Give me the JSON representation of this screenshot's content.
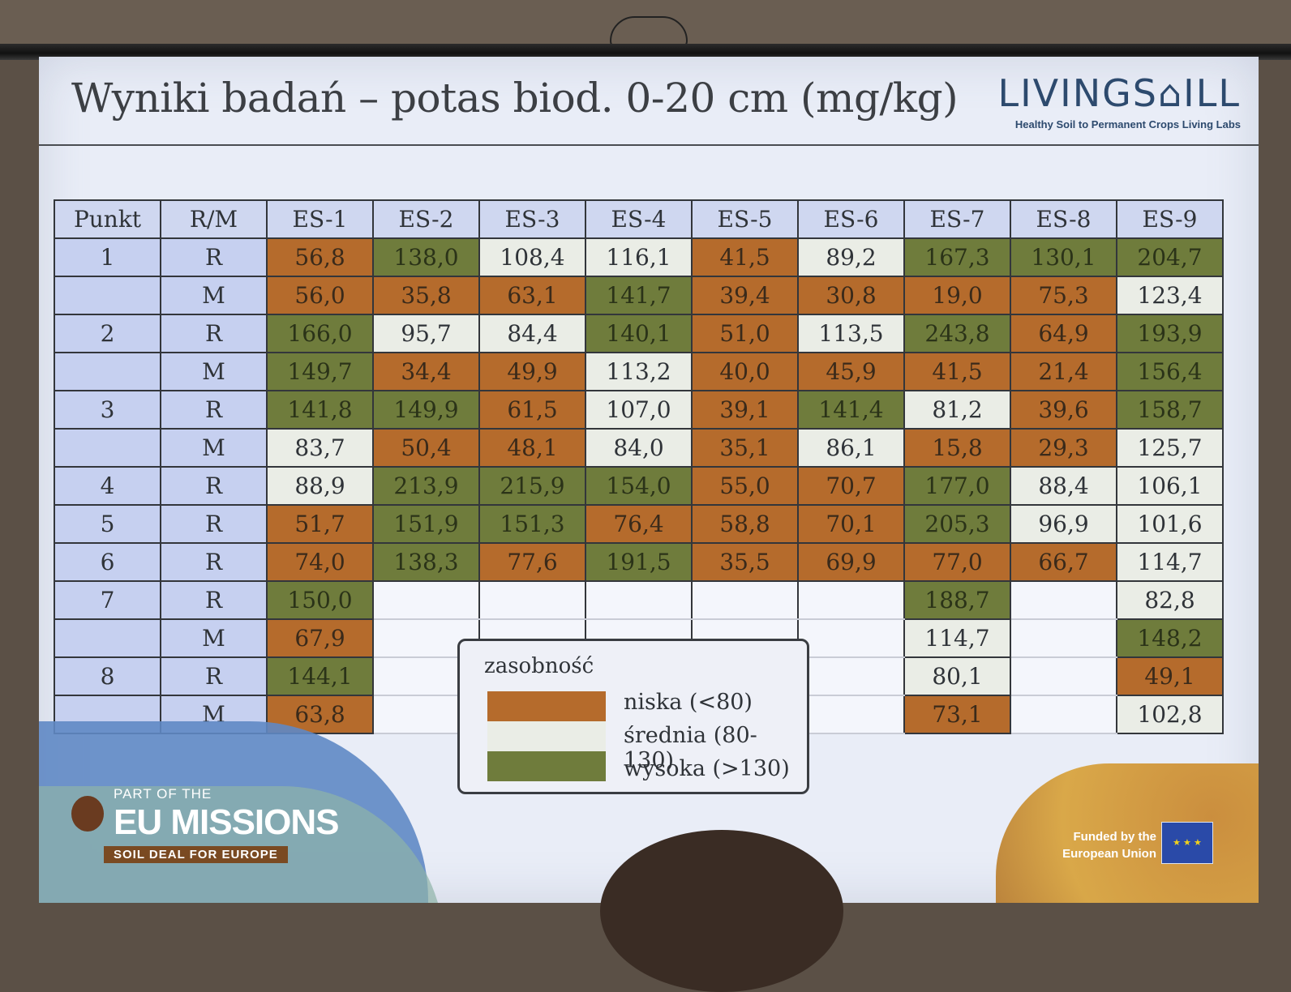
{
  "slide": {
    "title": "Wyniki badań – potas biod. 0-20 cm (mg/kg)",
    "logo_word": "LIVINGS⌂ILL",
    "logo_sub": "Healthy Soil to Permanent Crops Living Labs"
  },
  "table": {
    "headers": [
      "Punkt",
      "R/M",
      "ES-1",
      "ES-2",
      "ES-3",
      "ES-4",
      "ES-5",
      "ES-6",
      "ES-7",
      "ES-8",
      "ES-9"
    ],
    "rows": [
      {
        "punkt": "1",
        "rm": "R",
        "cells": [
          "56,8",
          "138,0",
          "108,4",
          "116,1",
          "41,5",
          "89,2",
          "167,3",
          "130,1",
          "204,7"
        ],
        "levels": [
          "low",
          "high",
          "mid",
          "mid",
          "low",
          "mid",
          "high",
          "high",
          "high"
        ]
      },
      {
        "punkt": "",
        "rm": "M",
        "cells": [
          "56,0",
          "35,8",
          "63,1",
          "141,7",
          "39,4",
          "30,8",
          "19,0",
          "75,3",
          "123,4"
        ],
        "levels": [
          "low",
          "low",
          "low",
          "high",
          "low",
          "low",
          "low",
          "low",
          "mid"
        ]
      },
      {
        "punkt": "2",
        "rm": "R",
        "cells": [
          "166,0",
          "95,7",
          "84,4",
          "140,1",
          "51,0",
          "113,5",
          "243,8",
          "64,9",
          "193,9"
        ],
        "levels": [
          "high",
          "mid",
          "mid",
          "high",
          "low",
          "mid",
          "high",
          "low",
          "high"
        ]
      },
      {
        "punkt": "",
        "rm": "M",
        "cells": [
          "149,7",
          "34,4",
          "49,9",
          "113,2",
          "40,0",
          "45,9",
          "41,5",
          "21,4",
          "156,4"
        ],
        "levels": [
          "high",
          "low",
          "low",
          "mid",
          "low",
          "low",
          "low",
          "low",
          "high"
        ]
      },
      {
        "punkt": "3",
        "rm": "R",
        "cells": [
          "141,8",
          "149,9",
          "61,5",
          "107,0",
          "39,1",
          "141,4",
          "81,2",
          "39,6",
          "158,7"
        ],
        "levels": [
          "high",
          "high",
          "low",
          "mid",
          "low",
          "high",
          "mid",
          "low",
          "high"
        ]
      },
      {
        "punkt": "",
        "rm": "M",
        "cells": [
          "83,7",
          "50,4",
          "48,1",
          "84,0",
          "35,1",
          "86,1",
          "15,8",
          "29,3",
          "125,7"
        ],
        "levels": [
          "mid",
          "low",
          "low",
          "mid",
          "low",
          "mid",
          "low",
          "low",
          "mid"
        ]
      },
      {
        "punkt": "4",
        "rm": "R",
        "cells": [
          "88,9",
          "213,9",
          "215,9",
          "154,0",
          "55,0",
          "70,7",
          "177,0",
          "88,4",
          "106,1"
        ],
        "levels": [
          "mid",
          "high",
          "high",
          "high",
          "low",
          "low",
          "high",
          "mid",
          "mid"
        ]
      },
      {
        "punkt": "5",
        "rm": "R",
        "cells": [
          "51,7",
          "151,9",
          "151,3",
          "76,4",
          "58,8",
          "70,1",
          "205,3",
          "96,9",
          "101,6"
        ],
        "levels": [
          "low",
          "high",
          "high",
          "low",
          "low",
          "low",
          "high",
          "mid",
          "mid"
        ]
      },
      {
        "punkt": "6",
        "rm": "R",
        "cells": [
          "74,0",
          "138,3",
          "77,6",
          "191,5",
          "35,5",
          "69,9",
          "77,0",
          "66,7",
          "114,7"
        ],
        "levels": [
          "low",
          "high",
          "low",
          "high",
          "low",
          "low",
          "low",
          "low",
          "mid"
        ]
      },
      {
        "punkt": "7",
        "rm": "R",
        "cells": [
          "150,0",
          "",
          "",
          "",
          "",
          "",
          "188,7",
          "",
          "82,8"
        ],
        "levels": [
          "high",
          "",
          "",
          "",
          "",
          "",
          "high",
          "",
          "mid"
        ]
      },
      {
        "punkt": "",
        "rm": "M",
        "cells": [
          "67,9",
          "",
          "",
          "",
          "",
          "",
          "114,7",
          "",
          "148,2"
        ],
        "levels": [
          "low",
          "",
          "",
          "",
          "",
          "",
          "mid",
          "",
          "high"
        ]
      },
      {
        "punkt": "8",
        "rm": "R",
        "cells": [
          "144,1",
          "",
          "",
          "",
          "",
          "",
          "80,1",
          "",
          "49,1"
        ],
        "levels": [
          "high",
          "",
          "",
          "",
          "",
          "",
          "mid",
          "",
          "low"
        ]
      },
      {
        "punkt": "",
        "rm": "M",
        "cells": [
          "63,8",
          "",
          "",
          "",
          "",
          "",
          "73,1",
          "",
          "102,8"
        ],
        "levels": [
          "low",
          "",
          "",
          "",
          "",
          "",
          "low",
          "",
          "mid"
        ]
      }
    ]
  },
  "legend": {
    "title": "zasobność",
    "items": [
      {
        "label": "niska (<80)",
        "color": "#b56b2c"
      },
      {
        "label": "średnia (80-130)",
        "color": "#eaede6"
      },
      {
        "label": "wysoka (>130)",
        "color": "#6f7c3c"
      }
    ]
  },
  "footer": {
    "part_of": "PART OF THE",
    "eu_missions": "EU MISSIONS",
    "soil_deal": "SOIL DEAL FOR EUROPE",
    "funded": "Funded by the European Union",
    "flag_icon": "eu-flag-icon"
  }
}
